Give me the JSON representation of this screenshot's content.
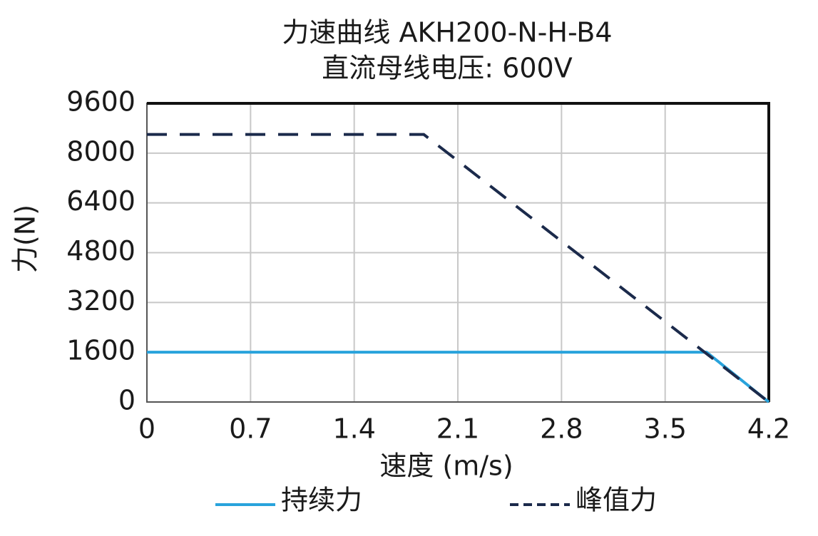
{
  "chart_data": {
    "type": "line",
    "title": "力速曲线 AKH200-N-H-B4",
    "subtitle": "直流母线电压: 600V",
    "x_label": "速度 (m/s)",
    "y_label": "力(N)",
    "xlim": [
      0,
      4.2
    ],
    "xticks": [
      0,
      0.7,
      1.4,
      2.1,
      2.8,
      3.5,
      4.2
    ],
    "ylim": [
      0,
      9600
    ],
    "yticks": [
      0,
      1600,
      3200,
      4800,
      6400,
      8000,
      9600
    ],
    "grid": true,
    "series": [
      {
        "name": "持续力",
        "color": "#29a3dc",
        "dashed": false,
        "x": [
          0,
          3.78,
          4.2
        ],
        "values": [
          1600,
          1600,
          0
        ]
      },
      {
        "name": "峰值力",
        "color": "#1b2a4b",
        "dashed": true,
        "x": [
          0,
          1.87,
          4.2
        ],
        "values": [
          8600,
          8600,
          0
        ]
      }
    ]
  }
}
